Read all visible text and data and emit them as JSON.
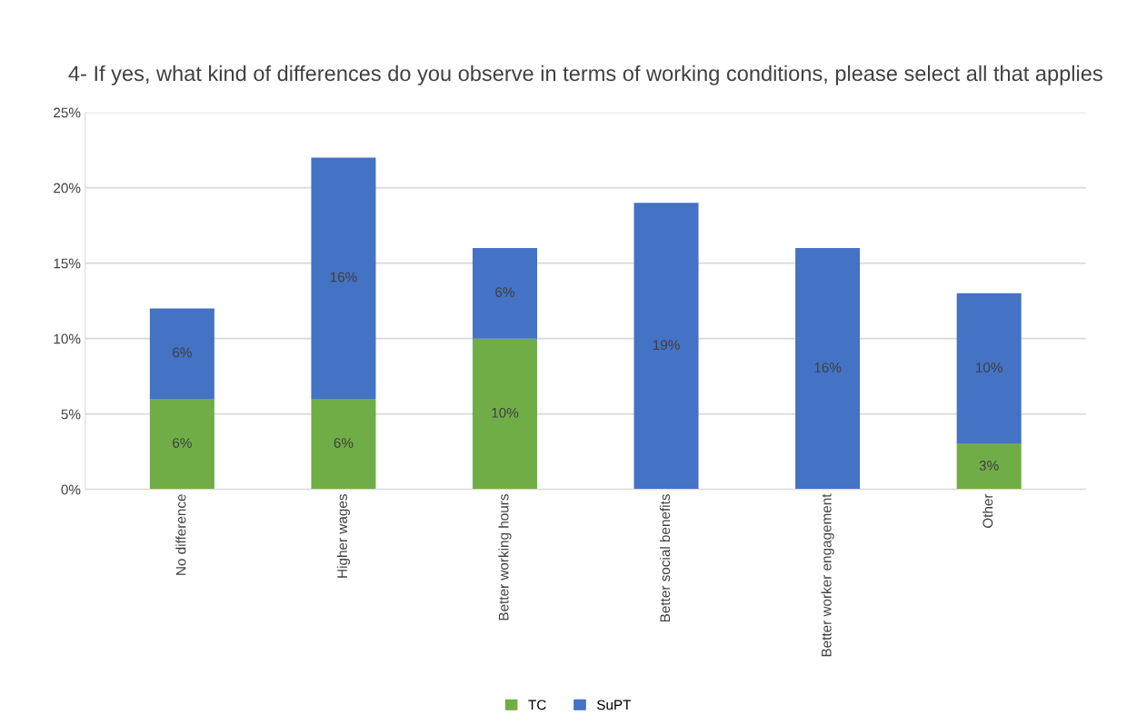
{
  "chart_data": {
    "type": "bar",
    "title": "4- If yes, what kind of differences do you observe in terms of working conditions, please select all that applies",
    "categories": [
      "No difference",
      "Higher wages",
      "Better working hours",
      "Better social benefits",
      "Better worker engagement",
      "Other"
    ],
    "stacked": true,
    "series": [
      {
        "name": "TC",
        "color": "#70ad47",
        "values": [
          6,
          6,
          10,
          null,
          null,
          3
        ],
        "value_labels": [
          "6%",
          "6%",
          "10%",
          null,
          null,
          "3%"
        ]
      },
      {
        "name": "SuPT",
        "color": "#4472c4",
        "values": [
          6,
          16,
          6,
          19,
          16,
          10
        ],
        "value_labels": [
          "6%",
          "16%",
          "6%",
          "19%",
          "16%",
          "10%"
        ]
      }
    ],
    "ylim": [
      0,
      25
    ],
    "yticks": [
      {
        "value": 0,
        "label": "0%"
      },
      {
        "value": 5,
        "label": "5%"
      },
      {
        "value": 10,
        "label": "10%"
      },
      {
        "value": 15,
        "label": "15%"
      },
      {
        "value": 20,
        "label": "20%"
      },
      {
        "value": 25,
        "label": "25%"
      }
    ],
    "grid": "y",
    "legend": "bottom"
  }
}
